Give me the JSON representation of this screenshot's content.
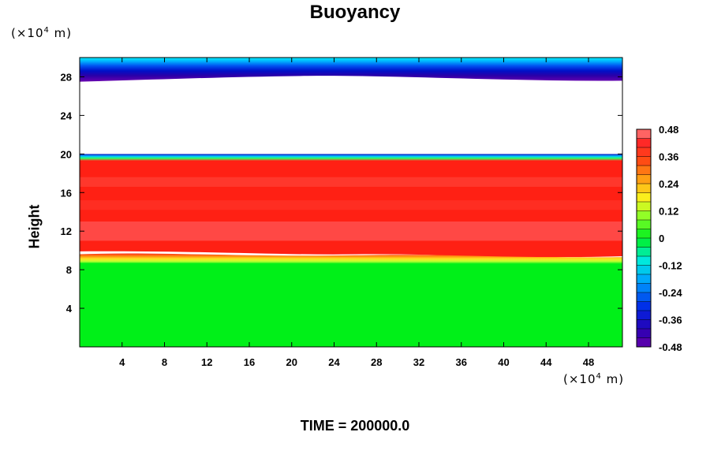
{
  "chart_data": {
    "type": "heatmap",
    "title": "Buoyancy",
    "ylabel": "Height",
    "xlabel": "",
    "x_unit": {
      "prefix": "(×10",
      "exp": "4",
      "suffix": " m)"
    },
    "y_unit": {
      "prefix": "(×10",
      "exp": "4",
      "suffix": " m)"
    },
    "xlim": [
      0,
      51.2
    ],
    "ylim": [
      0,
      30
    ],
    "x_ticks": [
      4,
      8,
      12,
      16,
      20,
      24,
      28,
      32,
      36,
      40,
      44,
      48
    ],
    "y_ticks": [
      4,
      8,
      12,
      16,
      20,
      24,
      28
    ],
    "colorbar": {
      "min": -0.48,
      "max": 0.48,
      "step": 0.04,
      "tick_labels": [
        "0.48",
        "0.36",
        "0.24",
        "0.12",
        "0",
        "-0.12",
        "-0.24",
        "-0.36",
        "-0.48"
      ],
      "tick_values": [
        0.48,
        0.36,
        0.24,
        0.12,
        0,
        -0.12,
        -0.24,
        -0.36,
        -0.48
      ]
    },
    "layers": [
      {
        "region": "top stable layer",
        "height_range": [
          27.5,
          30
        ],
        "value_range": [
          -0.48,
          -0.16
        ]
      },
      {
        "region": "upper layer",
        "height_range": [
          20,
          27.5
        ],
        "value": null
      },
      {
        "region": "thin boundary",
        "height_range": [
          19.5,
          20
        ],
        "value_range": [
          -0.44,
          0.08
        ]
      },
      {
        "region": "middle layer",
        "height_range": [
          9,
          19.5
        ],
        "value_range": [
          0.36,
          0.48
        ]
      },
      {
        "region": "transition",
        "height_range": [
          8.5,
          9.5
        ],
        "value_range": [
          0.08,
          0.24
        ]
      },
      {
        "region": "lower layer",
        "height_range": [
          0,
          8.5
        ],
        "value": 0
      }
    ]
  },
  "footer": {
    "time_label": "TIME = 200000.0"
  }
}
